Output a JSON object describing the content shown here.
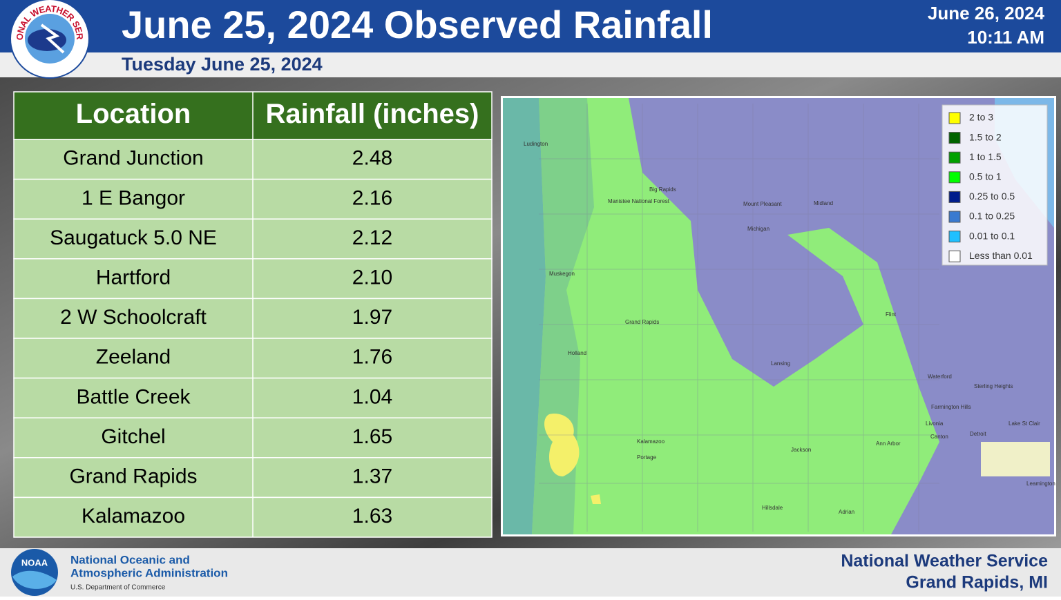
{
  "header": {
    "title": "June 25, 2024 Observed Rainfall",
    "subtitle": "Tuesday June 25, 2024",
    "issued_date": "June 26, 2024",
    "issued_time": "10:11 AM",
    "logo_text": "NATIONAL WEATHER SERVICE"
  },
  "table": {
    "columns": [
      "Location",
      "Rainfall (inches)"
    ],
    "rows": [
      [
        "Grand Junction",
        "2.48"
      ],
      [
        "1 E Bangor",
        "2.16"
      ],
      [
        "Saugatuck 5.0 NE",
        "2.12"
      ],
      [
        "Hartford",
        "2.10"
      ],
      [
        "2 W Schoolcraft",
        "1.97"
      ],
      [
        "Zeeland",
        "1.76"
      ],
      [
        "Battle Creek",
        "1.04"
      ],
      [
        "Gitchel",
        "1.65"
      ],
      [
        "Grand Rapids",
        "1.37"
      ],
      [
        "Kalamazoo",
        "1.63"
      ]
    ]
  },
  "map": {
    "legend": [
      {
        "label": "2 to 3",
        "color": "#ffff00"
      },
      {
        "label": "1.5 to 2",
        "color": "#006400"
      },
      {
        "label": "1 to 1.5",
        "color": "#00a000"
      },
      {
        "label": "0.5 to 1",
        "color": "#00ff00"
      },
      {
        "label": "0.25 to 0.5",
        "color": "#001c8c"
      },
      {
        "label": "0.1 to 0.25",
        "color": "#3a7ad0"
      },
      {
        "label": "0.01 to 0.1",
        "color": "#20c0ff"
      },
      {
        "label": "Less than 0.01",
        "color": "#ffffff"
      }
    ],
    "places": [
      {
        "name": "Ludington"
      },
      {
        "name": "Big Rapids"
      },
      {
        "name": "Manistee National Forest"
      },
      {
        "name": "Mount Pleasant"
      },
      {
        "name": "Midland"
      },
      {
        "name": "Michigan"
      },
      {
        "name": "Muskegon"
      },
      {
        "name": "Grand Rapids"
      },
      {
        "name": "Holland"
      },
      {
        "name": "Flint"
      },
      {
        "name": "Lansing"
      },
      {
        "name": "Waterford"
      },
      {
        "name": "Sterling Heights"
      },
      {
        "name": "Farmington Hills"
      },
      {
        "name": "Livonia"
      },
      {
        "name": "Detroit"
      },
      {
        "name": "Kalamazoo"
      },
      {
        "name": "Portage"
      },
      {
        "name": "Jackson"
      },
      {
        "name": "Ann Arbor"
      },
      {
        "name": "Canton"
      },
      {
        "name": "Adrian"
      },
      {
        "name": "Hillsdale"
      },
      {
        "name": "Lake St Clair"
      },
      {
        "name": "Leamington"
      }
    ]
  },
  "footer": {
    "agency_line1": "National Oceanic and",
    "agency_line2": "Atmospheric Administration",
    "agency_line3": "U.S. Department of Commerce",
    "noaa": "NOAA",
    "office_line1": "National Weather Service",
    "office_line2": "Grand Rapids, MI"
  }
}
